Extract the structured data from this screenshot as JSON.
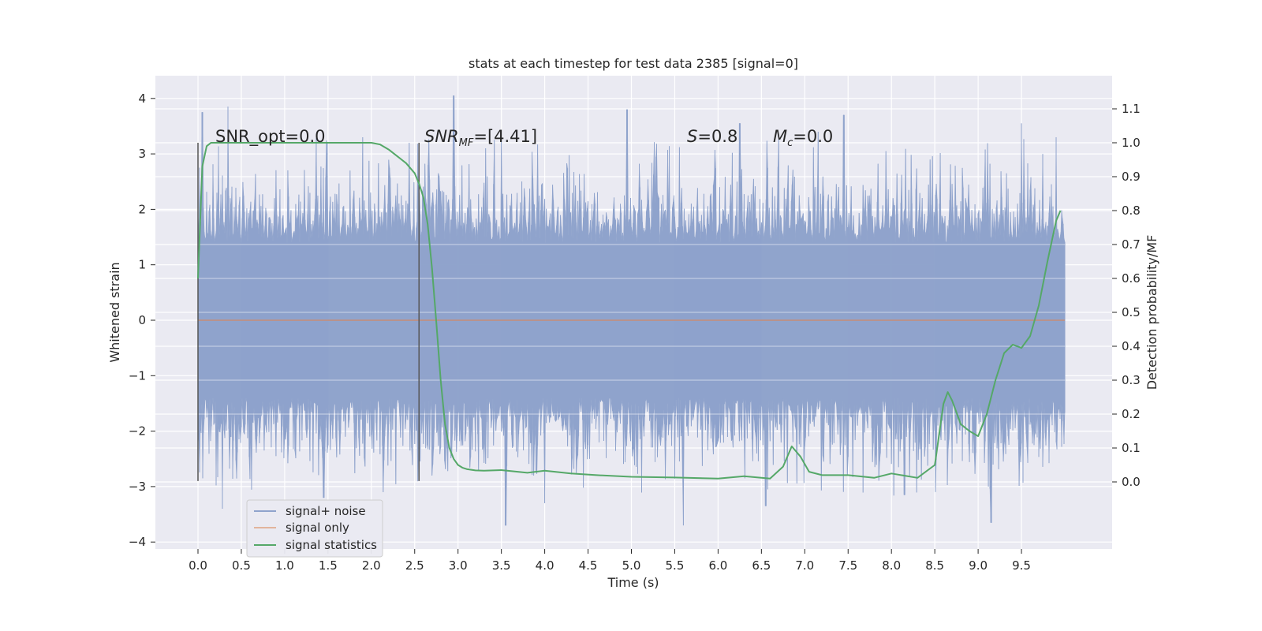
{
  "chart_data": {
    "type": "line",
    "title": "stats at each timestep for test data 2385 [signal=0]",
    "xlabel": "Time (s)",
    "ylabel_left": "Whitened strain",
    "ylabel_right": "Detection probability/MF",
    "xlim": [
      -0.5,
      10.5
    ],
    "ylim_left": [
      -4.1,
      4.4
    ],
    "ylim_right": [
      -0.2,
      1.2
    ],
    "grid": true,
    "x_ticks": [
      0.0,
      0.5,
      1.0,
      1.5,
      2.0,
      2.5,
      3.0,
      3.5,
      4.0,
      4.5,
      5.0,
      5.5,
      6.0,
      6.5,
      7.0,
      7.5,
      8.0,
      8.5,
      9.0,
      9.5
    ],
    "x_tick_labels": [
      "0.0",
      "0.5",
      "1.0",
      "1.5",
      "2.0",
      "2.5",
      "3.0",
      "3.5",
      "4.0",
      "4.5",
      "5.0",
      "5.5",
      "6.0",
      "6.5",
      "7.0",
      "7.5",
      "8.0",
      "8.5",
      "9.0",
      "9.5"
    ],
    "y_left_ticks": [
      4,
      3,
      2,
      1,
      0,
      -1,
      -2,
      -3,
      -4
    ],
    "y_left_tick_labels": [
      "4",
      "3",
      "2",
      "1",
      "0",
      "−1",
      "−2",
      "−3",
      "−4"
    ],
    "y_right_ticks": [
      1.1,
      1.0,
      0.9,
      0.8,
      0.7,
      0.6,
      0.5,
      0.4,
      0.3,
      0.2,
      0.1,
      0.0
    ],
    "y_right_tick_labels": [
      "1.1",
      "1.0",
      "0.9",
      "0.8",
      "0.7",
      "0.6",
      "0.5",
      "0.4",
      "0.3",
      "0.2",
      "0.1",
      "0.0"
    ],
    "legend_position": "lower-left",
    "legend": [
      "signal+ noise",
      "signal only",
      "signal statistics"
    ],
    "colors": {
      "signal_noise": "#8fa3cc",
      "signal_only": "#dd8452",
      "statistics": "#55a868",
      "plot_bg": "#eaeaf2",
      "grid": "#ffffff",
      "vline": "#555555"
    },
    "series": [
      {
        "name": "signal+ noise",
        "axis": "left",
        "x_range": [
          0.0,
          10.0
        ],
        "envelope": {
          "typical_amplitude": 1.4,
          "max_peaks": [
            [
              0.05,
              3.75
            ],
            [
              0.35,
              3.85
            ],
            [
              1.9,
              3.3
            ],
            [
              2.95,
              4.05
            ],
            [
              4.95,
              3.8
            ],
            [
              6.25,
              3.55
            ],
            [
              7.15,
              3.4
            ],
            [
              7.45,
              3.7
            ],
            [
              9.5,
              3.55
            ],
            [
              9.9,
              3.3
            ]
          ],
          "min_peaks": [
            [
              0.28,
              -3.4
            ],
            [
              1.45,
              -3.2
            ],
            [
              3.55,
              -3.7
            ],
            [
              4.0,
              -3.3
            ],
            [
              5.6,
              -3.7
            ],
            [
              6.55,
              -3.35
            ],
            [
              8.15,
              -3.15
            ],
            [
              9.15,
              -3.65
            ]
          ]
        }
      },
      {
        "name": "signal only",
        "axis": "left",
        "x": [
          0.0,
          10.0
        ],
        "y": [
          0.0,
          0.0
        ]
      },
      {
        "name": "signal statistics",
        "axis": "right",
        "x": [
          0.0,
          0.05,
          0.1,
          0.15,
          0.3,
          0.5,
          1.0,
          1.5,
          2.0,
          2.1,
          2.2,
          2.3,
          2.4,
          2.5,
          2.55,
          2.6,
          2.65,
          2.7,
          2.75,
          2.8,
          2.85,
          2.9,
          2.95,
          3.0,
          3.05,
          3.1,
          3.2,
          3.3,
          3.5,
          3.8,
          4.0,
          4.3,
          4.6,
          5.0,
          5.5,
          6.0,
          6.3,
          6.6,
          6.75,
          6.85,
          6.95,
          7.05,
          7.2,
          7.5,
          7.8,
          8.0,
          8.3,
          8.5,
          8.6,
          8.65,
          8.7,
          8.8,
          8.9,
          9.0,
          9.1,
          9.2,
          9.3,
          9.4,
          9.5,
          9.6,
          9.7,
          9.8,
          9.9,
          9.95
        ],
        "y": [
          0.6,
          0.93,
          0.99,
          1.0,
          1.0,
          1.0,
          1.0,
          1.0,
          1.0,
          0.995,
          0.98,
          0.96,
          0.94,
          0.91,
          0.88,
          0.84,
          0.76,
          0.63,
          0.47,
          0.3,
          0.17,
          0.1,
          0.068,
          0.05,
          0.042,
          0.038,
          0.034,
          0.033,
          0.035,
          0.027,
          0.033,
          0.025,
          0.02,
          0.015,
          0.013,
          0.01,
          0.017,
          0.01,
          0.045,
          0.105,
          0.075,
          0.03,
          0.02,
          0.02,
          0.012,
          0.025,
          0.012,
          0.05,
          0.23,
          0.265,
          0.24,
          0.17,
          0.15,
          0.135,
          0.2,
          0.3,
          0.38,
          0.405,
          0.395,
          0.43,
          0.52,
          0.65,
          0.77,
          0.8
        ]
      }
    ],
    "vertical_lines": [
      {
        "x": 0.0,
        "y_range": [
          -2.9,
          3.2
        ]
      },
      {
        "x": 2.55,
        "y_range": [
          -2.9,
          3.2
        ]
      }
    ],
    "annotations": [
      {
        "text": "SNR_opt=0.0",
        "x": 0.2
      },
      {
        "text": "SNR_MF=[4.41]",
        "x": 2.6
      },
      {
        "text": "S=0.8",
        "x": 5.6
      },
      {
        "text": "M_c=0.0",
        "x": 6.6
      }
    ]
  }
}
